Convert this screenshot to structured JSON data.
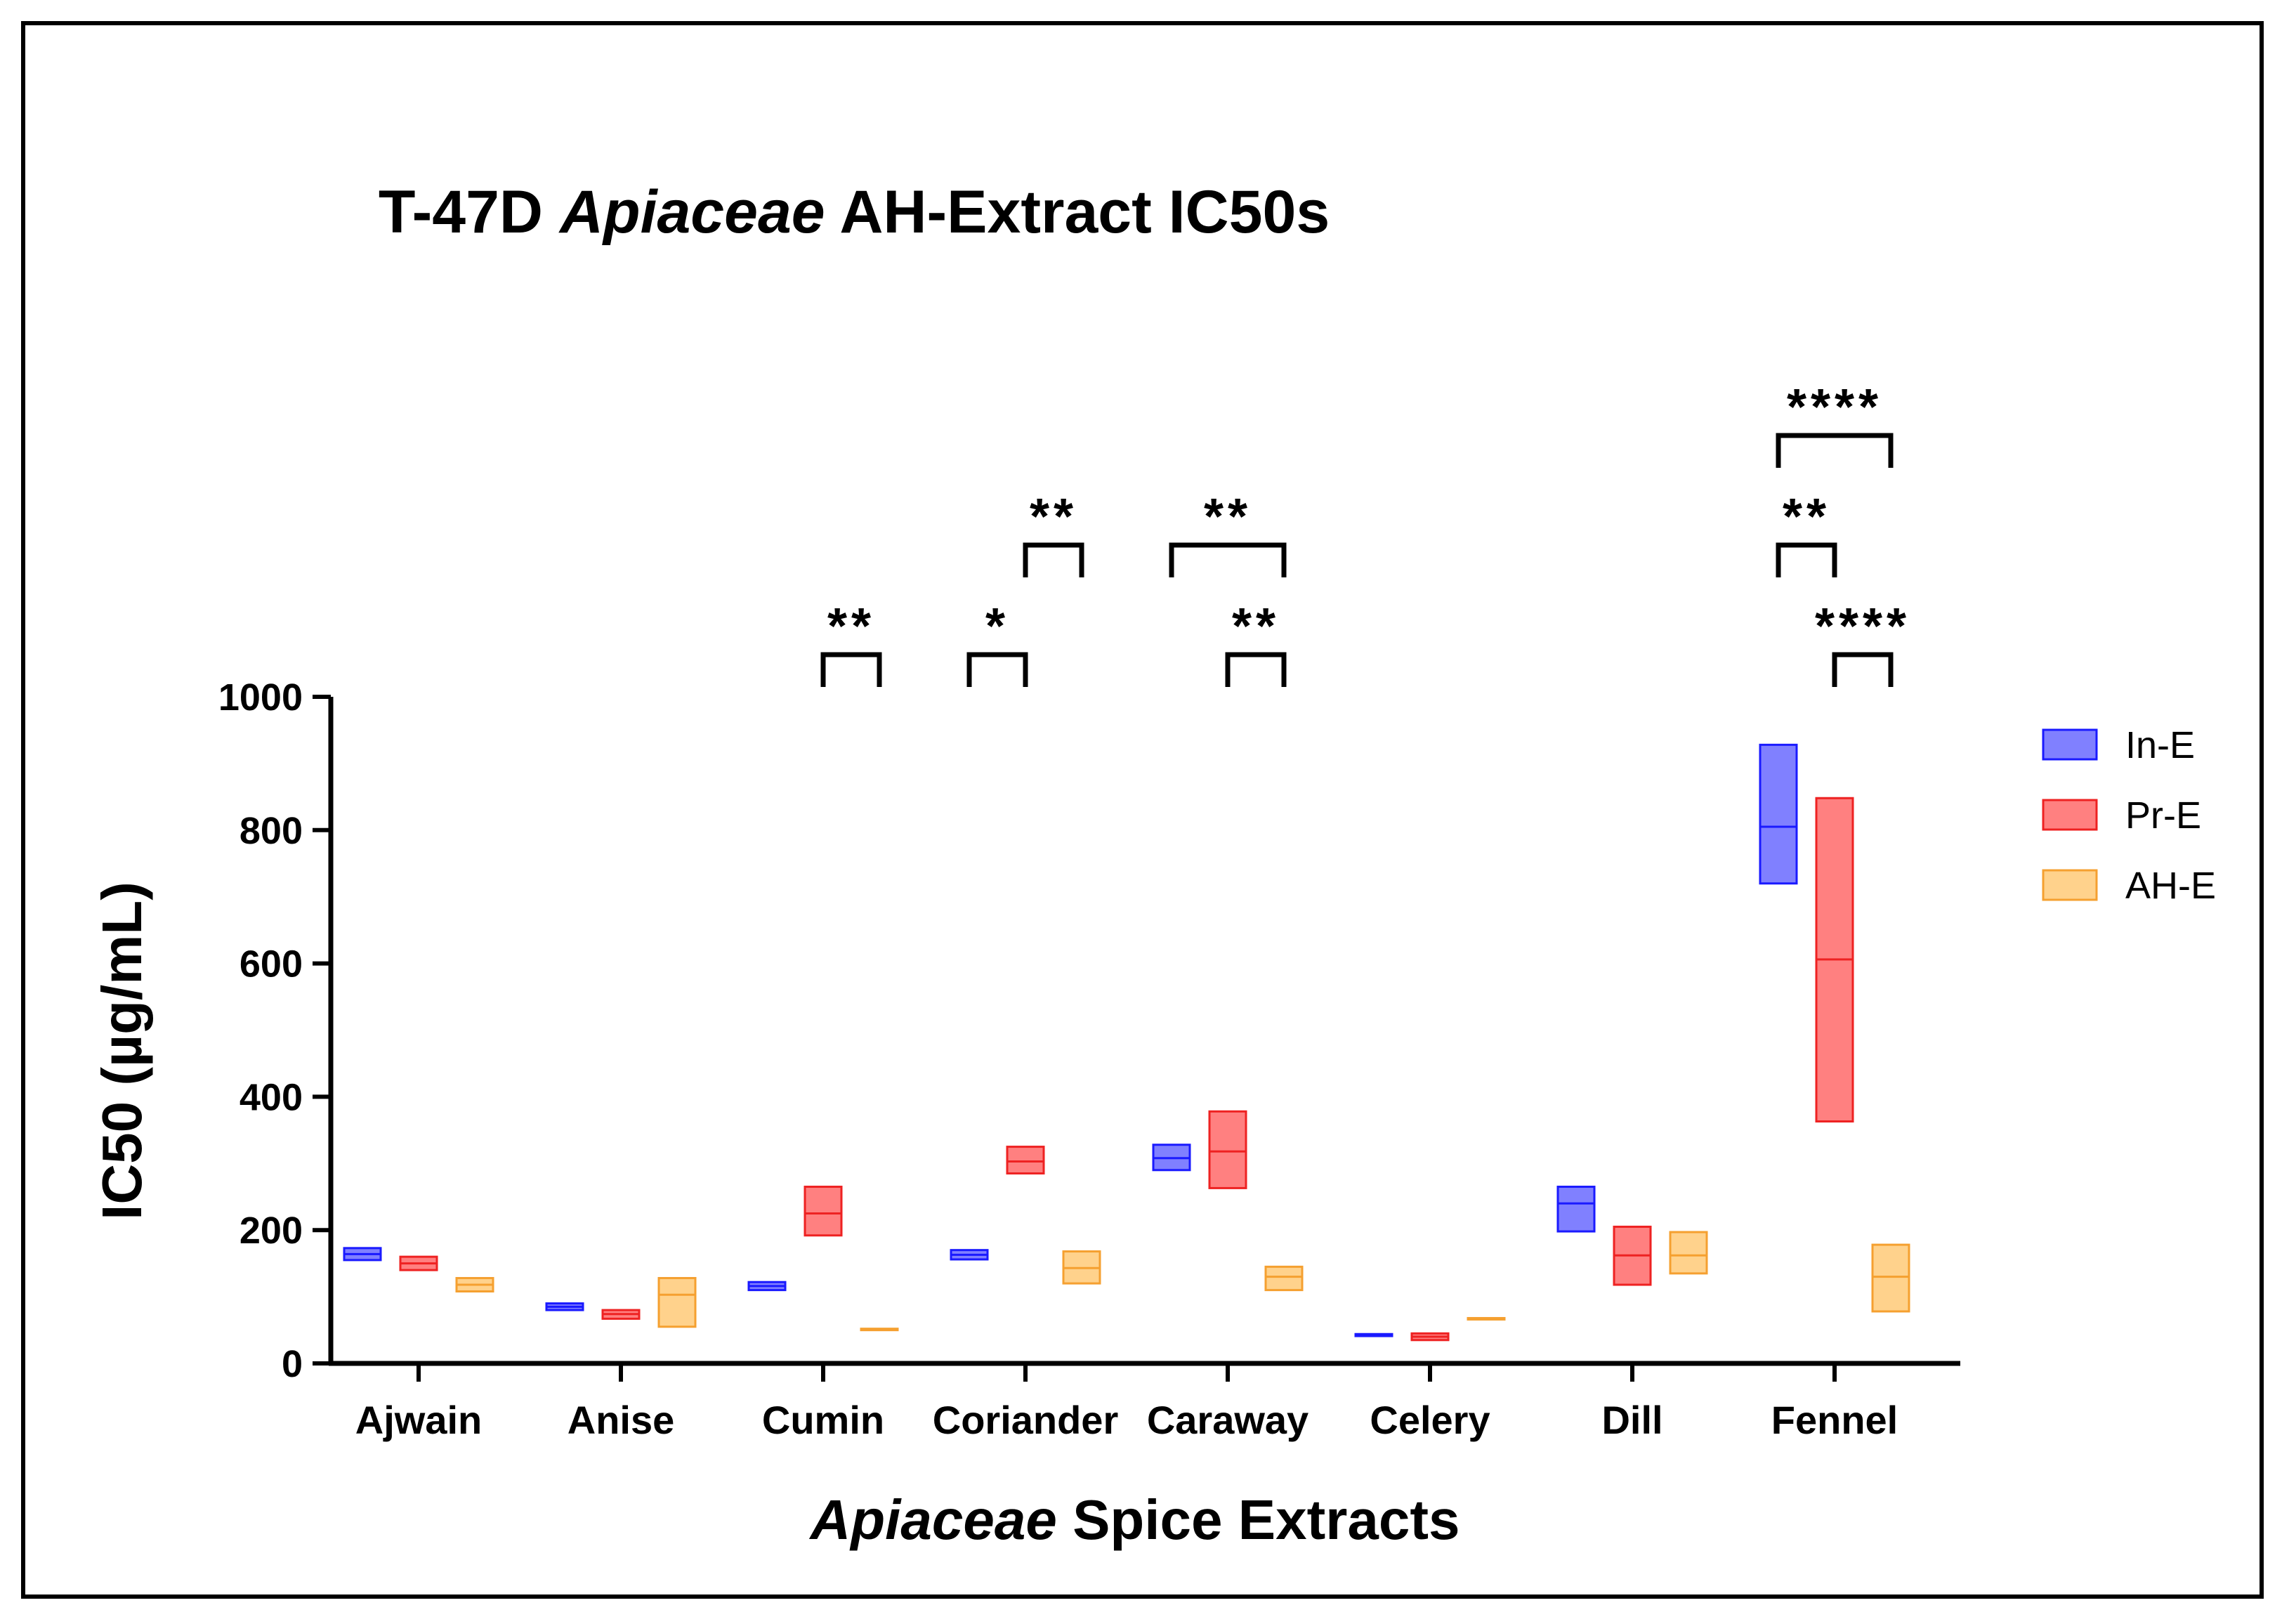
{
  "chart_data": {
    "type": "box",
    "title_parts": [
      {
        "text": "T-47D ",
        "italic": false
      },
      {
        "text": "Apiaceae",
        "italic": true
      },
      {
        "text": " AH-Extract IC50s",
        "italic": false
      }
    ],
    "xlabel_parts": [
      {
        "text": "Apiaceae",
        "italic": true
      },
      {
        "text": " Spice Extracts",
        "italic": false
      }
    ],
    "ylabel": "IC50 (µg/mL)",
    "ylim": [
      0,
      1000
    ],
    "yticks": [
      "0",
      "200",
      "400",
      "600",
      "800",
      "1000"
    ],
    "ytick_values": [
      0,
      200,
      400,
      600,
      800,
      1000
    ],
    "categories": [
      "Ajwain",
      "Anise",
      "Cumin",
      "Coriander",
      "Caraway",
      "Celery",
      "Dill",
      "Fennel"
    ],
    "series": [
      {
        "name": "In-E",
        "fill": "#8080ff",
        "stroke": "#1a1aff",
        "boxes": [
          {
            "min": 155,
            "median": 164,
            "max": 173
          },
          {
            "min": 80,
            "median": 85,
            "max": 90
          },
          {
            "min": 110,
            "median": 116,
            "max": 122
          },
          {
            "min": 156,
            "median": 163,
            "max": 170
          },
          {
            "min": 290,
            "median": 308,
            "max": 328
          },
          {
            "min": 41,
            "median": 42,
            "max": 44
          },
          {
            "min": 198,
            "median": 240,
            "max": 265
          },
          {
            "min": 720,
            "median": 805,
            "max": 928
          }
        ]
      },
      {
        "name": "Pr-E",
        "fill": "#ff8080",
        "stroke": "#ee2222",
        "boxes": [
          {
            "min": 140,
            "median": 150,
            "max": 160
          },
          {
            "min": 67,
            "median": 74,
            "max": 80
          },
          {
            "min": 192,
            "median": 225,
            "max": 265
          },
          {
            "min": 285,
            "median": 303,
            "max": 325
          },
          {
            "min": 263,
            "median": 318,
            "max": 378
          },
          {
            "min": 35,
            "median": 40,
            "max": 45
          },
          {
            "min": 118,
            "median": 162,
            "max": 205
          },
          {
            "min": 363,
            "median": 606,
            "max": 848
          }
        ]
      },
      {
        "name": "AH-E",
        "fill": "#ffd28c",
        "stroke": "#f5a030",
        "boxes": [
          {
            "min": 108,
            "median": 118,
            "max": 128
          },
          {
            "min": 55,
            "median": 103,
            "max": 128
          },
          {
            "min": 50,
            "median": 51,
            "max": 52
          },
          {
            "min": 120,
            "median": 143,
            "max": 168
          },
          {
            "min": 110,
            "median": 130,
            "max": 145
          },
          {
            "min": 66,
            "median": 67,
            "max": 68
          },
          {
            "min": 135,
            "median": 162,
            "max": 197
          },
          {
            "min": 78,
            "median": 130,
            "max": 178
          }
        ]
      }
    ],
    "significance": [
      {
        "label": "**",
        "category": "Cumin",
        "from": 1,
        "to": 2,
        "level": 1
      },
      {
        "label": "*",
        "category": "Coriander",
        "from": 0,
        "to": 1,
        "level": 1
      },
      {
        "label": "**",
        "category": "Coriander",
        "from": 1,
        "to": 2,
        "level": 2
      },
      {
        "label": "**",
        "category": "Caraway",
        "from": 1,
        "to": 2,
        "level": 1
      },
      {
        "label": "**",
        "category": "Caraway",
        "from": 0,
        "to": 2,
        "level": 2,
        "left_offset_categories": -0.25
      },
      {
        "label": "****",
        "category": "Fennel",
        "from": 1,
        "to": 2,
        "level": 1
      },
      {
        "label": "**",
        "category": "Fennel",
        "from": 0,
        "to": 1,
        "level": 2
      },
      {
        "label": "****",
        "category": "Fennel",
        "from": 0,
        "to": 2,
        "level": 3
      }
    ],
    "legend_position": "right",
    "grid": false
  }
}
